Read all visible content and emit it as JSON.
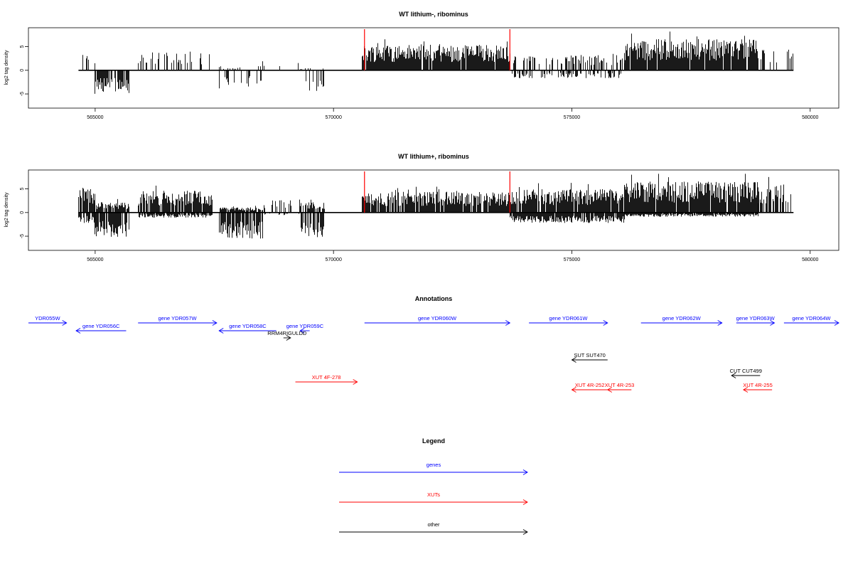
{
  "colors": {
    "genes": "#0000ff",
    "xuts": "#ff0000",
    "other": "#000000",
    "signal": "#000000",
    "marker": "#ff0000"
  },
  "chart_data": [
    {
      "type": "bar",
      "title": "WT lithium-, ribominus",
      "ylabel": "log2 tag density",
      "xlim": [
        563600,
        580600
      ],
      "ylim": [
        -8,
        9
      ],
      "xticks": [
        565000,
        570000,
        575000,
        580000
      ],
      "xtick_labels": [
        "565000",
        "570000",
        "575000",
        "580000"
      ],
      "yticks": [
        -5,
        0,
        5
      ],
      "ytick_labels": [
        "-5",
        "0",
        "5"
      ],
      "signal_range": [
        564650,
        579650
      ],
      "markers": [
        570650,
        573700
      ],
      "profile": [
        {
          "start": 564650,
          "end": 564980,
          "pos": 3.2,
          "neg": 0,
          "density": 0.25
        },
        {
          "start": 564980,
          "end": 565700,
          "pos": 0,
          "neg": -4.6,
          "density": 0.8
        },
        {
          "start": 565900,
          "end": 567450,
          "pos": 3.6,
          "neg": 0,
          "density": 0.35
        },
        {
          "start": 567600,
          "end": 568500,
          "pos": 0.8,
          "neg": -3.5,
          "density": 0.2
        },
        {
          "start": 568500,
          "end": 569300,
          "pos": 1.5,
          "neg": 0,
          "density": 0.05
        },
        {
          "start": 569300,
          "end": 569800,
          "pos": 0.5,
          "neg": -4.0,
          "density": 0.25
        },
        {
          "start": 570600,
          "end": 573700,
          "pos": 5.0,
          "neg": 0,
          "density": 0.95
        },
        {
          "start": 573700,
          "end": 576100,
          "pos": 3.0,
          "neg": -1.5,
          "density": 0.35
        },
        {
          "start": 576100,
          "end": 578900,
          "pos": 6.0,
          "neg": 0,
          "density": 0.95
        },
        {
          "start": 578900,
          "end": 579650,
          "pos": 4.0,
          "neg": 0,
          "density": 0.2
        }
      ]
    },
    {
      "type": "bar",
      "title": "WT lithium+, ribominus",
      "ylabel": "log2 tag density",
      "xlim": [
        563600,
        580600
      ],
      "ylim": [
        -8,
        9
      ],
      "xticks": [
        565000,
        570000,
        575000,
        580000
      ],
      "xtick_labels": [
        "565000",
        "570000",
        "575000",
        "580000"
      ],
      "yticks": [
        -5,
        0,
        5
      ],
      "ytick_labels": [
        "-5",
        "0",
        "5"
      ],
      "signal_range": [
        564650,
        579650
      ],
      "markers": [
        570650,
        573700
      ],
      "profile": [
        {
          "start": 564650,
          "end": 564980,
          "pos": 4.8,
          "neg": -2.0,
          "density": 0.9
        },
        {
          "start": 564980,
          "end": 565700,
          "pos": 2.0,
          "neg": -4.8,
          "density": 0.9
        },
        {
          "start": 565900,
          "end": 567450,
          "pos": 4.2,
          "neg": -1.0,
          "density": 0.85
        },
        {
          "start": 567600,
          "end": 568500,
          "pos": 1.0,
          "neg": -5.0,
          "density": 0.85
        },
        {
          "start": 568500,
          "end": 569300,
          "pos": 2.5,
          "neg": -0.5,
          "density": 0.25
        },
        {
          "start": 569300,
          "end": 569800,
          "pos": 2.0,
          "neg": -4.8,
          "density": 0.7
        },
        {
          "start": 570600,
          "end": 573700,
          "pos": 4.0,
          "neg": 0,
          "density": 0.9
        },
        {
          "start": 573700,
          "end": 576100,
          "pos": 4.5,
          "neg": -2.0,
          "density": 0.9
        },
        {
          "start": 576100,
          "end": 578900,
          "pos": 6.0,
          "neg": -0.8,
          "density": 0.95
        },
        {
          "start": 578900,
          "end": 579650,
          "pos": 5.5,
          "neg": 0,
          "density": 0.6
        }
      ]
    }
  ],
  "annotations": {
    "title": "Annotations",
    "features": [
      {
        "label": "YDR055W",
        "start": 563600,
        "end": 564400,
        "strand": "+",
        "row": 1,
        "cls": "genes"
      },
      {
        "label": "gene YDR056C",
        "start": 564600,
        "end": 565650,
        "strand": "-",
        "row": 2,
        "cls": "genes"
      },
      {
        "label": "gene YDR057W",
        "start": 565900,
        "end": 567550,
        "strand": "+",
        "row": 1,
        "cls": "genes"
      },
      {
        "label": "gene YDR058C",
        "start": 567600,
        "end": 568800,
        "strand": "-",
        "row": 2,
        "cls": "genes"
      },
      {
        "label": "gene YDR059C",
        "start": 569300,
        "end": 569500,
        "strand": "-",
        "row": 2,
        "cls": "genes"
      },
      {
        "label": "RRM4RIGULDD",
        "start": 568950,
        "end": 569100,
        "strand": "+",
        "row": 3,
        "cls": "other"
      },
      {
        "label": "gene YDR060W",
        "start": 570650,
        "end": 573700,
        "strand": "+",
        "row": 1,
        "cls": "genes"
      },
      {
        "label": "gene YDR061W",
        "start": 574100,
        "end": 575750,
        "strand": "+",
        "row": 1,
        "cls": "genes"
      },
      {
        "label": "gene YDR062W",
        "start": 576450,
        "end": 578150,
        "strand": "+",
        "row": 1,
        "cls": "genes"
      },
      {
        "label": "gene YDR063W",
        "start": 578450,
        "end": 579250,
        "strand": "+",
        "row": 1,
        "cls": "genes"
      },
      {
        "label": "gene YDR064W",
        "start": 579450,
        "end": 580600,
        "strand": "+",
        "row": 1,
        "cls": "genes"
      },
      {
        "label": "SUT SUT470",
        "start": 575000,
        "end": 575750,
        "strand": "-",
        "row": 4,
        "cls": "other"
      },
      {
        "label": "CUT CUT499",
        "start": 578350,
        "end": 578950,
        "strand": "-",
        "row": 5,
        "cls": "other"
      },
      {
        "label": "XUT 4F-278",
        "start": 569200,
        "end": 570500,
        "strand": "+",
        "row": 6,
        "cls": "xuts"
      },
      {
        "label": "XUT 4R-252",
        "start": 575000,
        "end": 575750,
        "strand": "-",
        "row": 7,
        "cls": "xuts"
      },
      {
        "label": "XUT 4R-253",
        "start": 575750,
        "end": 576250,
        "strand": "-",
        "row": 7,
        "cls": "xuts"
      },
      {
        "label": "XUT 4R-255",
        "start": 578600,
        "end": 579200,
        "strand": "-",
        "row": 7,
        "cls": "xuts"
      }
    ]
  },
  "legend": {
    "title": "Legend",
    "items": [
      {
        "label": "genes",
        "cls": "genes"
      },
      {
        "label": "XUTs",
        "cls": "xuts"
      },
      {
        "label": "other",
        "cls": "other"
      }
    ]
  }
}
